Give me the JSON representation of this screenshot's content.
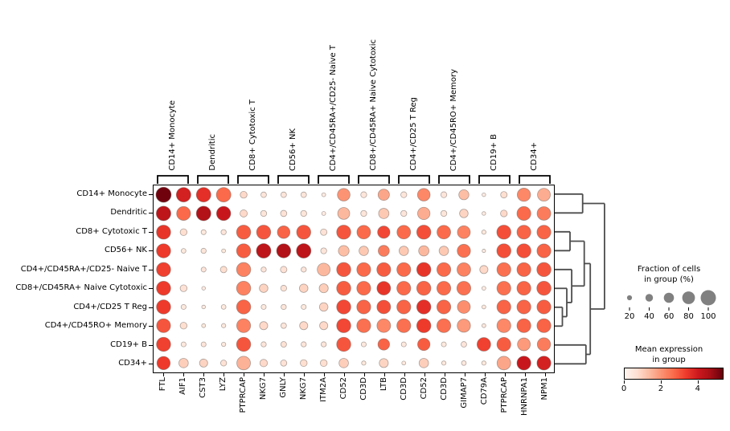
{
  "chart_data": {
    "type": "dotplot",
    "description": "Scanpy-style dot plot of marker gene mean expression and fraction of expressing cells per cell-type group, with hierarchical clustering dendrogram",
    "row_labels": [
      "CD14+ Monocyte",
      "Dendritic",
      "CD8+ Cytotoxic T",
      "CD56+ NK",
      "CD4+/CD45RA+/CD25- Naive T",
      "CD8+/CD45RA+ Naive Cytotoxic",
      "CD4+/CD25 T Reg",
      "CD4+/CD45RO+ Memory",
      "CD19+ B",
      "CD34+"
    ],
    "group_labels": [
      "CD14+ Monocyte",
      "Dendritic",
      "CD8+ Cytotoxic T",
      "CD56+ NK",
      "CD4+/CD45RA+/CD25- Naive T",
      "CD8+/CD45RA+ Naive Cytotoxic",
      "CD4+/CD25 T Reg",
      "CD4+/CD45RO+ Memory",
      "CD19+ B",
      "CD34+"
    ],
    "col_labels": [
      "FTL",
      "AIF1",
      "CST3",
      "LYZ",
      "PTPRCAP",
      "NKG7",
      "GNLY",
      "NKG7",
      "ITM2A",
      "CD52",
      "CD3D",
      "LTB",
      "CD3D",
      "CD52",
      "CD3D",
      "GIMAP7",
      "CD79A",
      "PTPRCAP",
      "HNRNPA1",
      "NPM1"
    ],
    "cells_format": "[fraction_of_cells_pct, mean_expression]",
    "cells": [
      [
        [
          100,
          5.3
        ],
        [
          95,
          3.9
        ],
        [
          95,
          3.6
        ],
        [
          95,
          2.7
        ],
        [
          35,
          0.8
        ],
        [
          25,
          0.5
        ],
        [
          25,
          0.5
        ],
        [
          25,
          0.5
        ],
        [
          12,
          0.3
        ],
        [
          80,
          2.0
        ],
        [
          28,
          0.5
        ],
        [
          70,
          1.7
        ],
        [
          28,
          0.5
        ],
        [
          80,
          2.2
        ],
        [
          28,
          0.5
        ],
        [
          60,
          1.3
        ],
        [
          10,
          0.3
        ],
        [
          32,
          0.7
        ],
        [
          85,
          2.2
        ],
        [
          82,
          1.6
        ]
      ],
      [
        [
          95,
          4.3
        ],
        [
          90,
          2.7
        ],
        [
          95,
          4.5
        ],
        [
          92,
          4.1
        ],
        [
          38,
          0.8
        ],
        [
          28,
          0.5
        ],
        [
          30,
          0.6
        ],
        [
          28,
          0.5
        ],
        [
          12,
          0.3
        ],
        [
          75,
          1.4
        ],
        [
          28,
          0.5
        ],
        [
          62,
          1.1
        ],
        [
          28,
          0.5
        ],
        [
          78,
          1.6
        ],
        [
          28,
          0.5
        ],
        [
          48,
          0.9
        ],
        [
          10,
          0.3
        ],
        [
          34,
          0.8
        ],
        [
          90,
          2.7
        ],
        [
          88,
          2.4
        ]
      ],
      [
        [
          92,
          3.5
        ],
        [
          35,
          0.7
        ],
        [
          20,
          0.4
        ],
        [
          22,
          0.5
        ],
        [
          92,
          2.9
        ],
        [
          92,
          3.0
        ],
        [
          80,
          2.8
        ],
        [
          92,
          3.0
        ],
        [
          32,
          0.6
        ],
        [
          92,
          3.0
        ],
        [
          88,
          2.7
        ],
        [
          78,
          3.2
        ],
        [
          88,
          2.7
        ],
        [
          92,
          3.1
        ],
        [
          88,
          2.7
        ],
        [
          82,
          2.3
        ],
        [
          15,
          0.4
        ],
        [
          92,
          3.1
        ],
        [
          90,
          2.8
        ],
        [
          90,
          2.8
        ]
      ],
      [
        [
          92,
          3.4
        ],
        [
          18,
          0.4
        ],
        [
          22,
          0.5
        ],
        [
          12,
          0.4
        ],
        [
          92,
          2.9
        ],
        [
          95,
          4.3
        ],
        [
          92,
          4.5
        ],
        [
          95,
          4.3
        ],
        [
          28,
          0.5
        ],
        [
          65,
          1.3
        ],
        [
          55,
          1.1
        ],
        [
          68,
          2.4
        ],
        [
          55,
          1.1
        ],
        [
          62,
          1.4
        ],
        [
          55,
          1.1
        ],
        [
          85,
          2.6
        ],
        [
          8,
          0.3
        ],
        [
          92,
          3.1
        ],
        [
          92,
          3.1
        ],
        [
          90,
          2.8
        ]
      ],
      [
        [
          92,
          3.3
        ],
        [
          0,
          0
        ],
        [
          20,
          0.5
        ],
        [
          32,
          0.7
        ],
        [
          92,
          2.3
        ],
        [
          22,
          0.5
        ],
        [
          32,
          0.6
        ],
        [
          22,
          0.5
        ],
        [
          82,
          1.4
        ],
        [
          92,
          3.0
        ],
        [
          90,
          2.7
        ],
        [
          90,
          2.9
        ],
        [
          90,
          2.7
        ],
        [
          92,
          3.5
        ],
        [
          90,
          2.7
        ],
        [
          88,
          2.3
        ],
        [
          45,
          0.8
        ],
        [
          90,
          2.6
        ],
        [
          90,
          2.8
        ],
        [
          92,
          3.0
        ]
      ],
      [
        [
          92,
          3.4
        ],
        [
          35,
          0.6
        ],
        [
          10,
          0.3
        ],
        [
          0,
          0
        ],
        [
          92,
          2.3
        ],
        [
          48,
          0.9
        ],
        [
          28,
          0.6
        ],
        [
          48,
          0.9
        ],
        [
          52,
          1.0
        ],
        [
          92,
          2.9
        ],
        [
          90,
          2.7
        ],
        [
          88,
          3.5
        ],
        [
          90,
          2.7
        ],
        [
          92,
          2.8
        ],
        [
          90,
          2.7
        ],
        [
          90,
          2.6
        ],
        [
          12,
          0.3
        ],
        [
          90,
          2.6
        ],
        [
          90,
          2.8
        ],
        [
          92,
          3.0
        ]
      ],
      [
        [
          92,
          3.4
        ],
        [
          20,
          0.4
        ],
        [
          10,
          0.3
        ],
        [
          18,
          0.4
        ],
        [
          92,
          2.8
        ],
        [
          20,
          0.4
        ],
        [
          22,
          0.5
        ],
        [
          20,
          0.4
        ],
        [
          48,
          0.9
        ],
        [
          92,
          3.2
        ],
        [
          90,
          2.8
        ],
        [
          88,
          3.1
        ],
        [
          90,
          2.8
        ],
        [
          92,
          3.6
        ],
        [
          90,
          2.8
        ],
        [
          82,
          2.1
        ],
        [
          12,
          0.4
        ],
        [
          90,
          2.8
        ],
        [
          90,
          2.8
        ],
        [
          90,
          2.9
        ]
      ],
      [
        [
          90,
          3.0
        ],
        [
          35,
          0.7
        ],
        [
          12,
          0.4
        ],
        [
          15,
          0.4
        ],
        [
          90,
          2.3
        ],
        [
          45,
          0.8
        ],
        [
          25,
          0.5
        ],
        [
          45,
          0.8
        ],
        [
          45,
          0.8
        ],
        [
          92,
          3.2
        ],
        [
          90,
          2.6
        ],
        [
          88,
          2.2
        ],
        [
          90,
          2.6
        ],
        [
          92,
          3.4
        ],
        [
          90,
          2.6
        ],
        [
          85,
          1.9
        ],
        [
          12,
          0.4
        ],
        [
          90,
          2.2
        ],
        [
          90,
          2.8
        ],
        [
          90,
          2.8
        ]
      ],
      [
        [
          92,
          3.3
        ],
        [
          20,
          0.4
        ],
        [
          20,
          0.5
        ],
        [
          15,
          0.4
        ],
        [
          92,
          3.0
        ],
        [
          22,
          0.5
        ],
        [
          26,
          0.6
        ],
        [
          22,
          0.5
        ],
        [
          22,
          0.5
        ],
        [
          92,
          3.0
        ],
        [
          20,
          0.4
        ],
        [
          72,
          2.8
        ],
        [
          20,
          0.4
        ],
        [
          78,
          2.9
        ],
        [
          20,
          0.4
        ],
        [
          25,
          0.5
        ],
        [
          88,
          3.3
        ],
        [
          90,
          2.9
        ],
        [
          82,
          1.9
        ],
        [
          85,
          2.4
        ]
      ],
      [
        [
          85,
          3.4
        ],
        [
          55,
          1.0
        ],
        [
          45,
          0.9
        ],
        [
          28,
          0.6
        ],
        [
          88,
          1.5
        ],
        [
          40,
          0.8
        ],
        [
          30,
          0.6
        ],
        [
          35,
          0.7
        ],
        [
          35,
          0.7
        ],
        [
          55,
          1.0
        ],
        [
          15,
          0.4
        ],
        [
          52,
          0.9
        ],
        [
          12,
          0.4
        ],
        [
          55,
          1.0
        ],
        [
          15,
          0.4
        ],
        [
          18,
          0.4
        ],
        [
          15,
          0.4
        ],
        [
          88,
          1.7
        ],
        [
          90,
          4.1
        ],
        [
          90,
          3.9
        ]
      ]
    ],
    "colormap": {
      "name": "Reds",
      "vmax": 5.4,
      "stops": [
        "#fff5f0",
        "#fee0d2",
        "#fcbba1",
        "#fc9272",
        "#fb6a4a",
        "#ef3b2c",
        "#cb181d",
        "#a50f15",
        "#67000d"
      ]
    },
    "dot_edge_color": "rgba(110,100,95,0.55)",
    "dendrogram": {
      "line_color": "#4d4d4d",
      "merges": [
        [
          "r0",
          "r1",
          0.51
        ],
        [
          "r6",
          "r7",
          0.14
        ],
        [
          "r5",
          "c1",
          0.22
        ],
        [
          "r4",
          "c2",
          0.31
        ],
        [
          "r2",
          "r3",
          0.28
        ],
        [
          "r8",
          "r9",
          0.57
        ],
        [
          "c4",
          "c3",
          0.54
        ],
        [
          "c6",
          "c5",
          0.65
        ],
        [
          "c0",
          "c7",
          0.91
        ]
      ]
    },
    "size_legend": {
      "title_line1": "Fraction of cells",
      "title_line2": "in group (%)",
      "values": [
        20,
        40,
        60,
        80,
        100
      ],
      "dot_color": "#808080"
    },
    "color_legend": {
      "title_line1": "Mean expression",
      "title_line2": "in group",
      "tick_values": [
        0,
        2,
        4
      ]
    }
  }
}
